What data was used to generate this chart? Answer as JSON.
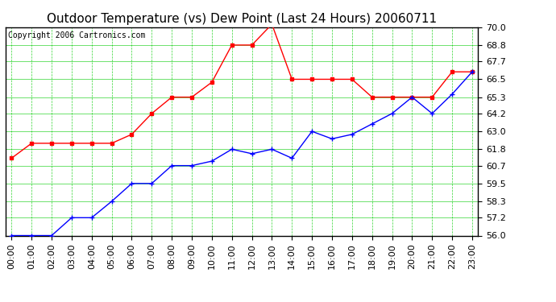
{
  "title": "Outdoor Temperature (vs) Dew Point (Last 24 Hours) 20060711",
  "copyright": "Copyright 2006 Cartronics.com",
  "hours": [
    "00:00",
    "01:00",
    "02:00",
    "03:00",
    "04:00",
    "05:00",
    "06:00",
    "07:00",
    "08:00",
    "09:00",
    "10:00",
    "11:00",
    "12:00",
    "13:00",
    "14:00",
    "15:00",
    "16:00",
    "17:00",
    "18:00",
    "19:00",
    "20:00",
    "21:00",
    "22:00",
    "23:00"
  ],
  "temp": [
    61.2,
    62.2,
    62.2,
    62.2,
    62.2,
    62.2,
    62.8,
    64.2,
    65.3,
    65.3,
    66.3,
    68.8,
    68.8,
    70.2,
    66.5,
    66.5,
    66.5,
    66.5,
    65.3,
    65.3,
    65.3,
    65.3,
    67.0,
    67.0
  ],
  "dewpoint": [
    56.0,
    56.0,
    56.0,
    57.2,
    57.2,
    58.3,
    59.5,
    59.5,
    60.7,
    60.7,
    61.0,
    61.8,
    61.5,
    61.8,
    61.2,
    63.0,
    62.5,
    62.8,
    63.5,
    64.2,
    65.3,
    64.2,
    65.5,
    67.0
  ],
  "ylim": [
    56.0,
    70.0
  ],
  "yticks": [
    56.0,
    57.2,
    58.3,
    59.5,
    60.7,
    61.8,
    63.0,
    64.2,
    65.3,
    66.5,
    67.7,
    68.8,
    70.0
  ],
  "temp_color": "#ff0000",
  "dew_color": "#0000ff",
  "bg_color": "#ffffff",
  "grid_color": "#00cc00",
  "title_fontsize": 11,
  "copyright_fontsize": 7,
  "tick_fontsize": 8,
  "border_color": "#000000"
}
